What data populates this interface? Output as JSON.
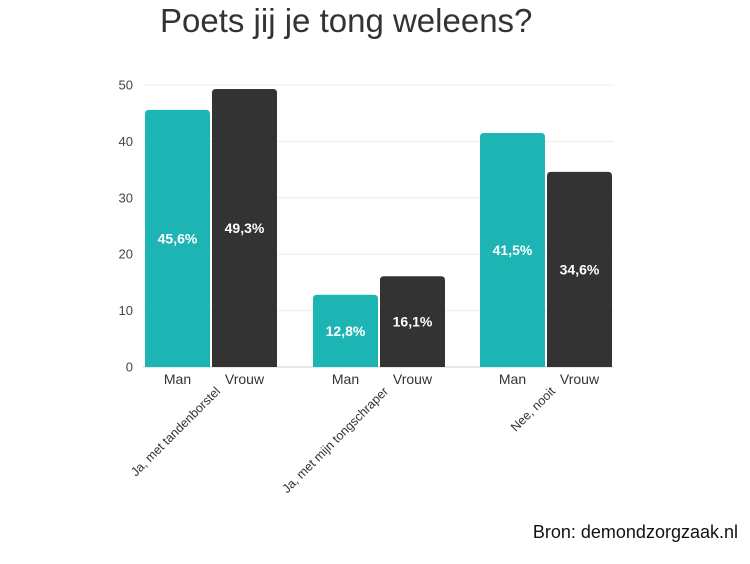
{
  "title": "Poets jij je tong weleens?",
  "source": "Bron: demondzorgzaak.nl",
  "colors": {
    "man": "#1cb5b3",
    "vrouw": "#333333",
    "label_on_man": "#ffffff",
    "label_on_vrouw": "#ffffff"
  },
  "chart_data": {
    "type": "bar",
    "title": "Poets jij je tong weleens?",
    "categories": [
      "Ja, met tandenborstel",
      "Ja, met mijn tongschraper",
      "Nee, nooit"
    ],
    "series": [
      {
        "name": "Man",
        "values": [
          45.6,
          12.8,
          41.5
        ],
        "labels": [
          "45,6%",
          "12,8%",
          "41,5%"
        ]
      },
      {
        "name": "Vrouw",
        "values": [
          49.3,
          16.1,
          34.6
        ],
        "labels": [
          "49,3%",
          "16,1%",
          "34,6%"
        ]
      }
    ],
    "ylim": [
      0,
      50
    ],
    "yticks": [
      "0",
      "10",
      "20",
      "30",
      "40",
      "50"
    ],
    "grid": true,
    "legend": "none"
  }
}
